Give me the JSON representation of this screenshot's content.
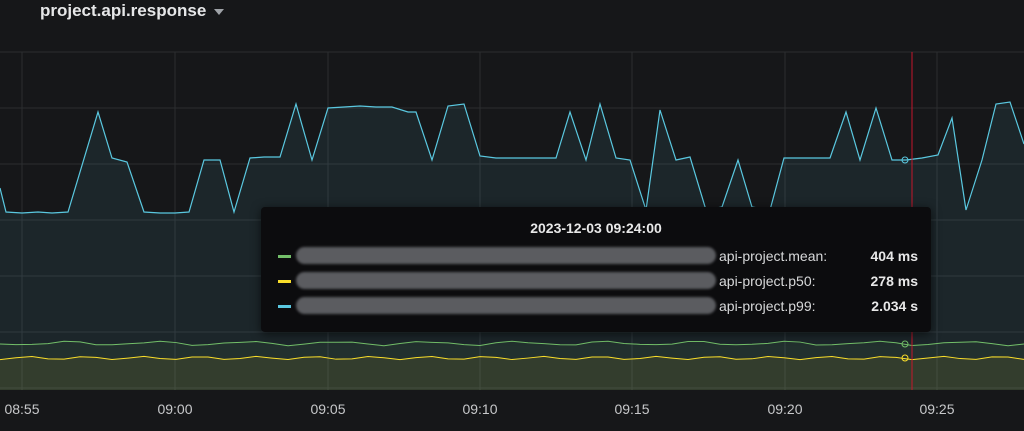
{
  "panel": {
    "title": "project.api.response",
    "menu_icon": "caret-down-icon"
  },
  "x_axis": {
    "ticks": [
      "08:55",
      "09:00",
      "09:05",
      "09:10",
      "09:15",
      "09:20",
      "09:25"
    ]
  },
  "colors": {
    "mean": "#73bf69",
    "p50": "#fade2a",
    "p99": "#5ac8e0",
    "cursor": "#c4162a",
    "background": "#161719"
  },
  "tooltip": {
    "time": "2023-12-03 09:24:00",
    "rows": [
      {
        "series": "mean",
        "name": "api-project.mean:",
        "value": "404 ms"
      },
      {
        "series": "p50",
        "name": "api-project.p50:",
        "value": "278 ms"
      },
      {
        "series": "p99",
        "name": "api-project.p99:",
        "value": "2.034 s"
      }
    ]
  }
}
